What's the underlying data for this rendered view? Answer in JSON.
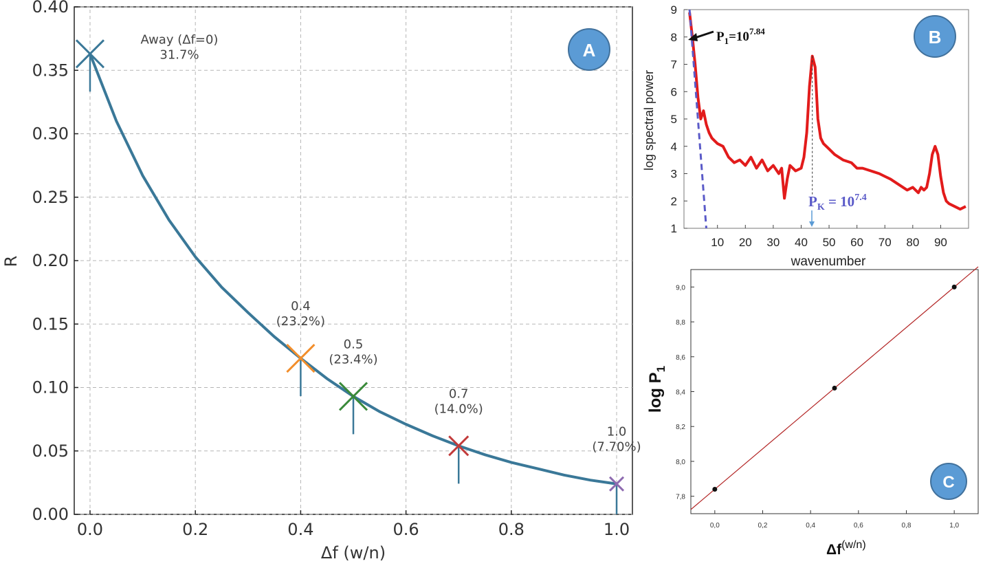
{
  "colors": {
    "curve": "#3a7898",
    "badge_fill": "#5b9bd5",
    "badge_stroke": "#41719c",
    "spectrum": "#e21b1b",
    "fit": "#5a5ac8",
    "line_c": "#b22222"
  },
  "chart_data": [
    {
      "id": "A",
      "type": "line",
      "badge": "A",
      "xlabel": "Δf (w/n)",
      "ylabel": "R",
      "xlim": [
        -0.03,
        1.03
      ],
      "ylim": [
        0.0,
        0.4
      ],
      "xticks": [
        "0.0",
        "0.2",
        "0.4",
        "0.6",
        "0.8",
        "1.0"
      ],
      "yticks": [
        "0.00",
        "0.05",
        "0.10",
        "0.15",
        "0.20",
        "0.25",
        "0.30",
        "0.35",
        "0.40"
      ],
      "grid": true,
      "curve": {
        "x": [
          0,
          0.05,
          0.1,
          0.15,
          0.2,
          0.25,
          0.3,
          0.35,
          0.4,
          0.45,
          0.5,
          0.55,
          0.6,
          0.65,
          0.7,
          0.75,
          0.8,
          0.85,
          0.9,
          0.95,
          1.0
        ],
        "y": [
          0.363,
          0.31,
          0.267,
          0.232,
          0.203,
          0.179,
          0.159,
          0.14,
          0.123,
          0.107,
          0.093,
          0.081,
          0.071,
          0.062,
          0.054,
          0.047,
          0.041,
          0.036,
          0.031,
          0.027,
          0.024
        ]
      },
      "markers": [
        {
          "x": 0.0,
          "y": 0.363,
          "color": "#3a7898",
          "label": [
            "Away (Δf=0)",
            "31.7%"
          ],
          "size": "large"
        },
        {
          "x": 0.4,
          "y": 0.123,
          "color": "#f28e2b",
          "label": [
            "0.4",
            "(23.2%)"
          ],
          "size": "large"
        },
        {
          "x": 0.5,
          "y": 0.093,
          "color": "#3a8a3a",
          "label": [
            "0.5",
            "(23.4%)"
          ],
          "size": "large"
        },
        {
          "x": 0.7,
          "y": 0.054,
          "color": "#c23b3b",
          "label": [
            "0.7",
            "(14.0%)"
          ],
          "size": "medium"
        },
        {
          "x": 1.0,
          "y": 0.024,
          "color": "#8e6bb0",
          "label": [
            "1.0",
            "(7.70%)"
          ],
          "size": "small"
        }
      ]
    },
    {
      "id": "B",
      "type": "line",
      "badge": "B",
      "xlabel": "wavenumber",
      "ylabel": "log spectral power",
      "xlim": [
        -2,
        100
      ],
      "ylim": [
        1,
        9
      ],
      "xticks": [
        "10",
        "20",
        "30",
        "40",
        "50",
        "60",
        "70",
        "80",
        "90"
      ],
      "yticks": [
        "1",
        "2",
        "3",
        "4",
        "5",
        "6",
        "7",
        "8",
        "9"
      ],
      "series": [
        {
          "x": [
            0,
            1,
            2,
            3,
            4,
            5,
            6,
            7,
            8,
            9,
            10,
            12,
            14,
            16,
            18,
            20,
            22,
            24,
            26,
            28,
            30,
            32,
            33,
            34,
            35,
            36,
            38,
            40,
            41,
            42,
            43,
            44,
            45,
            46,
            47,
            48,
            50,
            52,
            55,
            58,
            60,
            62,
            65,
            68,
            70,
            72,
            75,
            78,
            80,
            81,
            82,
            83,
            84,
            85,
            86,
            87,
            88,
            89,
            90,
            91,
            92,
            93,
            95,
            97,
            99
          ],
          "y": [
            8.9,
            8.0,
            7.0,
            5.8,
            5.0,
            5.3,
            4.8,
            4.5,
            4.3,
            4.2,
            4.1,
            4.0,
            3.6,
            3.4,
            3.5,
            3.3,
            3.6,
            3.2,
            3.5,
            3.1,
            3.3,
            3.0,
            3.2,
            2.1,
            2.8,
            3.3,
            3.1,
            3.2,
            3.6,
            4.5,
            6.2,
            7.3,
            6.9,
            5.0,
            4.3,
            4.1,
            3.9,
            3.7,
            3.5,
            3.4,
            3.2,
            3.2,
            3.1,
            3.0,
            2.9,
            2.8,
            2.6,
            2.4,
            2.5,
            2.4,
            2.3,
            2.5,
            2.4,
            2.5,
            3.0,
            3.7,
            4.0,
            3.7,
            2.9,
            2.3,
            2.0,
            1.9,
            1.8,
            1.7,
            1.8
          ]
        }
      ],
      "fit_line": {
        "x": [
          0,
          6
        ],
        "y": [
          9.0,
          1.0
        ]
      },
      "peak_x": 44,
      "annotations": {
        "p1_base": "P",
        "p1_sub": "1",
        "p1_mid": "=10",
        "p1_exp": "7.84",
        "pk_base": "P",
        "pk_sub": "K",
        "pk_mid": " = 10",
        "pk_exp": "7.4"
      }
    },
    {
      "id": "C",
      "type": "scatter",
      "badge": "C",
      "xlabel_base": "Δf",
      "xlabel_sup": "(w/n)",
      "ylabel_base": "log P",
      "ylabel_sub": "1",
      "xlim": [
        -0.1,
        1.1
      ],
      "ylim": [
        7.7,
        9.1
      ],
      "xticks": [
        "0,0",
        "0,2",
        "0,4",
        "0,6",
        "0,8",
        "1,0"
      ],
      "yticks": [
        "7,8",
        "8,0",
        "8,2",
        "8,4",
        "8,6",
        "8,8",
        "9,0"
      ],
      "points": {
        "x": [
          0.0,
          0.5,
          1.0
        ],
        "y": [
          7.84,
          8.42,
          9.0
        ]
      },
      "fit": {
        "x": [
          -0.1,
          1.1
        ],
        "y": [
          7.724,
          9.116
        ]
      }
    }
  ]
}
